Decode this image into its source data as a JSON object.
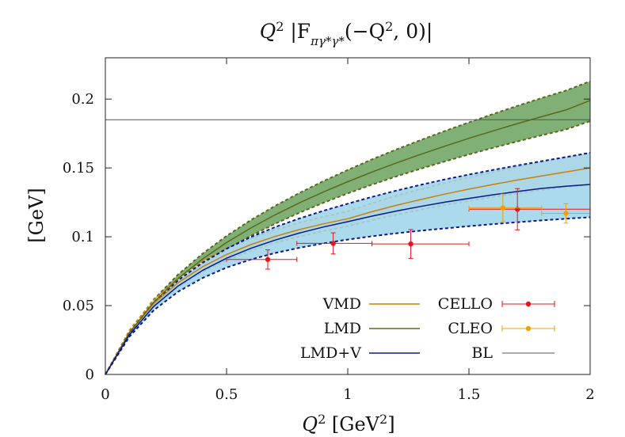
{
  "chart_data": {
    "type": "line",
    "title": "Q² |F_πγ*γ*(−Q², 0)|",
    "xlabel": "Q² [GeV²]",
    "ylabel": "[GeV]",
    "xlim": [
      0,
      2
    ],
    "ylim": [
      0,
      0.23
    ],
    "xticks": [
      0,
      0.5,
      1,
      1.5,
      2
    ],
    "xtick_labels": [
      "0",
      "0.5",
      "1",
      "1.5",
      "2"
    ],
    "yticks": [
      0,
      0.05,
      0.1,
      0.15,
      0.2
    ],
    "ytick_labels": [
      "0",
      "0.05",
      "0.1",
      "0.15",
      "0.2"
    ],
    "grid": false,
    "legend_position": "bottom-right",
    "x": [
      0,
      0.1,
      0.2,
      0.3,
      0.4,
      0.5,
      0.6,
      0.7,
      0.8,
      0.9,
      1.0,
      1.1,
      1.2,
      1.3,
      1.4,
      1.5,
      1.6,
      1.7,
      1.8,
      1.9,
      2.0
    ],
    "series": [
      {
        "name": "VMD",
        "color": "#c8820a",
        "band_color": "#f7e3c8",
        "values": [
          0,
          0.0306,
          0.0515,
          0.0666,
          0.0781,
          0.0871,
          0.0943,
          0.1002,
          0.1052,
          0.1094,
          0.1131,
          0.1182,
          0.1228,
          0.127,
          0.131,
          0.1346,
          0.138,
          0.1412,
          0.1442,
          0.1471,
          0.15
        ],
        "band_lower": [
          0,
          0.029,
          0.049,
          0.0634,
          0.0744,
          0.083,
          0.0898,
          0.0955,
          0.1002,
          0.1042,
          0.1077,
          0.112,
          0.116,
          0.1196,
          0.123,
          0.1261,
          0.1289,
          0.1315,
          0.1339,
          0.1361,
          0.138
        ],
        "band_upper": [
          0,
          0.0322,
          0.0541,
          0.0699,
          0.082,
          0.0913,
          0.0988,
          0.105,
          0.1102,
          0.1146,
          0.1185,
          0.1245,
          0.1298,
          0.1346,
          0.1391,
          0.1432,
          0.1471,
          0.1508,
          0.1543,
          0.1577,
          0.161
        ]
      },
      {
        "name": "LMD",
        "color": "#5a6a1c",
        "band_color": "#6aa25e",
        "values": [
          0,
          0.0306,
          0.0525,
          0.0696,
          0.0837,
          0.0958,
          0.1064,
          0.1159,
          0.1246,
          0.1326,
          0.14,
          0.147,
          0.1536,
          0.1598,
          0.1658,
          0.1715,
          0.1769,
          0.1822,
          0.1872,
          0.1921,
          0.199
        ],
        "band_lower": [
          0,
          0.0298,
          0.0505,
          0.0666,
          0.0797,
          0.0909,
          0.1007,
          0.1094,
          0.1174,
          0.1247,
          0.1315,
          0.1378,
          0.1438,
          0.1494,
          0.1547,
          0.1598,
          0.1646,
          0.1692,
          0.1737,
          0.1779,
          0.184
        ],
        "band_upper": [
          0,
          0.0314,
          0.0545,
          0.0726,
          0.0876,
          0.1006,
          0.1121,
          0.1224,
          0.1318,
          0.1405,
          0.1485,
          0.1562,
          0.1634,
          0.1702,
          0.1768,
          0.1831,
          0.1892,
          0.1951,
          0.2008,
          0.2062,
          0.213
        ]
      },
      {
        "name": "LMD+V",
        "color": "#0a1a8c",
        "band_color": "#9dd3ea",
        "values": [
          0,
          0.029,
          0.0495,
          0.0642,
          0.0755,
          0.0844,
          0.0916,
          0.0976,
          0.1027,
          0.1071,
          0.111,
          0.115,
          0.1187,
          0.122,
          0.1251,
          0.1279,
          0.1305,
          0.1329,
          0.1351,
          0.1367,
          0.138
        ],
        "band_lower": [
          0,
          0.0276,
          0.0467,
          0.0601,
          0.07,
          0.0776,
          0.0835,
          0.0882,
          0.092,
          0.0952,
          0.098,
          0.1004,
          0.1025,
          0.1044,
          0.1061,
          0.1077,
          0.1092,
          0.1106,
          0.1119,
          0.1131,
          0.1142
        ],
        "band_upper": [
          0,
          0.0304,
          0.0523,
          0.0683,
          0.081,
          0.0913,
          0.0998,
          0.107,
          0.1133,
          0.1189,
          0.124,
          0.129,
          0.1335,
          0.1377,
          0.1416,
          0.1452,
          0.1486,
          0.1518,
          0.1549,
          0.1579,
          0.161
        ]
      },
      {
        "name": "BL",
        "color": "#555555",
        "values": [
          0.185,
          0.185,
          0.185,
          0.185,
          0.185,
          0.185,
          0.185,
          0.185,
          0.185,
          0.185,
          0.185,
          0.185,
          0.185,
          0.185,
          0.185,
          0.185,
          0.185,
          0.185,
          0.185,
          0.185,
          0.185
        ]
      }
    ],
    "points": [
      {
        "name": "CELLO",
        "color": "#e8141c",
        "data": [
          {
            "x": 0.67,
            "y": 0.0835,
            "xerr": [
              0.5,
              0.79
            ],
            "yerr": [
              0.0765,
              0.0905
            ]
          },
          {
            "x": 0.94,
            "y": 0.0952,
            "xerr": [
              0.79,
              1.1
            ],
            "yerr": [
              0.0875,
              0.1029
            ]
          },
          {
            "x": 1.26,
            "y": 0.0948,
            "xerr": [
              1.1,
              1.5
            ],
            "yerr": [
              0.0843,
              0.1053
            ]
          },
          {
            "x": 1.7,
            "y": 0.12,
            "xerr": [
              1.5,
              2.0
            ],
            "yerr": [
              0.105,
              0.135
            ]
          }
        ]
      },
      {
        "name": "CLEO",
        "color": "#f0a000",
        "data": [
          {
            "x": 1.64,
            "y": 0.121,
            "xerr": [
              1.5,
              1.8
            ],
            "yerr": [
              0.111,
              0.131
            ]
          },
          {
            "x": 1.9,
            "y": 0.117,
            "xerr": [
              1.8,
              2.0
            ],
            "yerr": [
              0.11,
              0.124
            ]
          }
        ]
      }
    ],
    "legend": [
      {
        "label": "VMD",
        "kind": "line",
        "color": "#c8820a"
      },
      {
        "label": "LMD",
        "kind": "line",
        "color": "#5a6a1c"
      },
      {
        "label": "LMD+V",
        "kind": "line",
        "color": "#0a1a8c"
      },
      {
        "label": "CELLO",
        "kind": "point",
        "color": "#e8141c"
      },
      {
        "label": "CLEO",
        "kind": "point",
        "color": "#f0a000"
      },
      {
        "label": "BL",
        "kind": "line",
        "color": "#555555"
      }
    ]
  }
}
